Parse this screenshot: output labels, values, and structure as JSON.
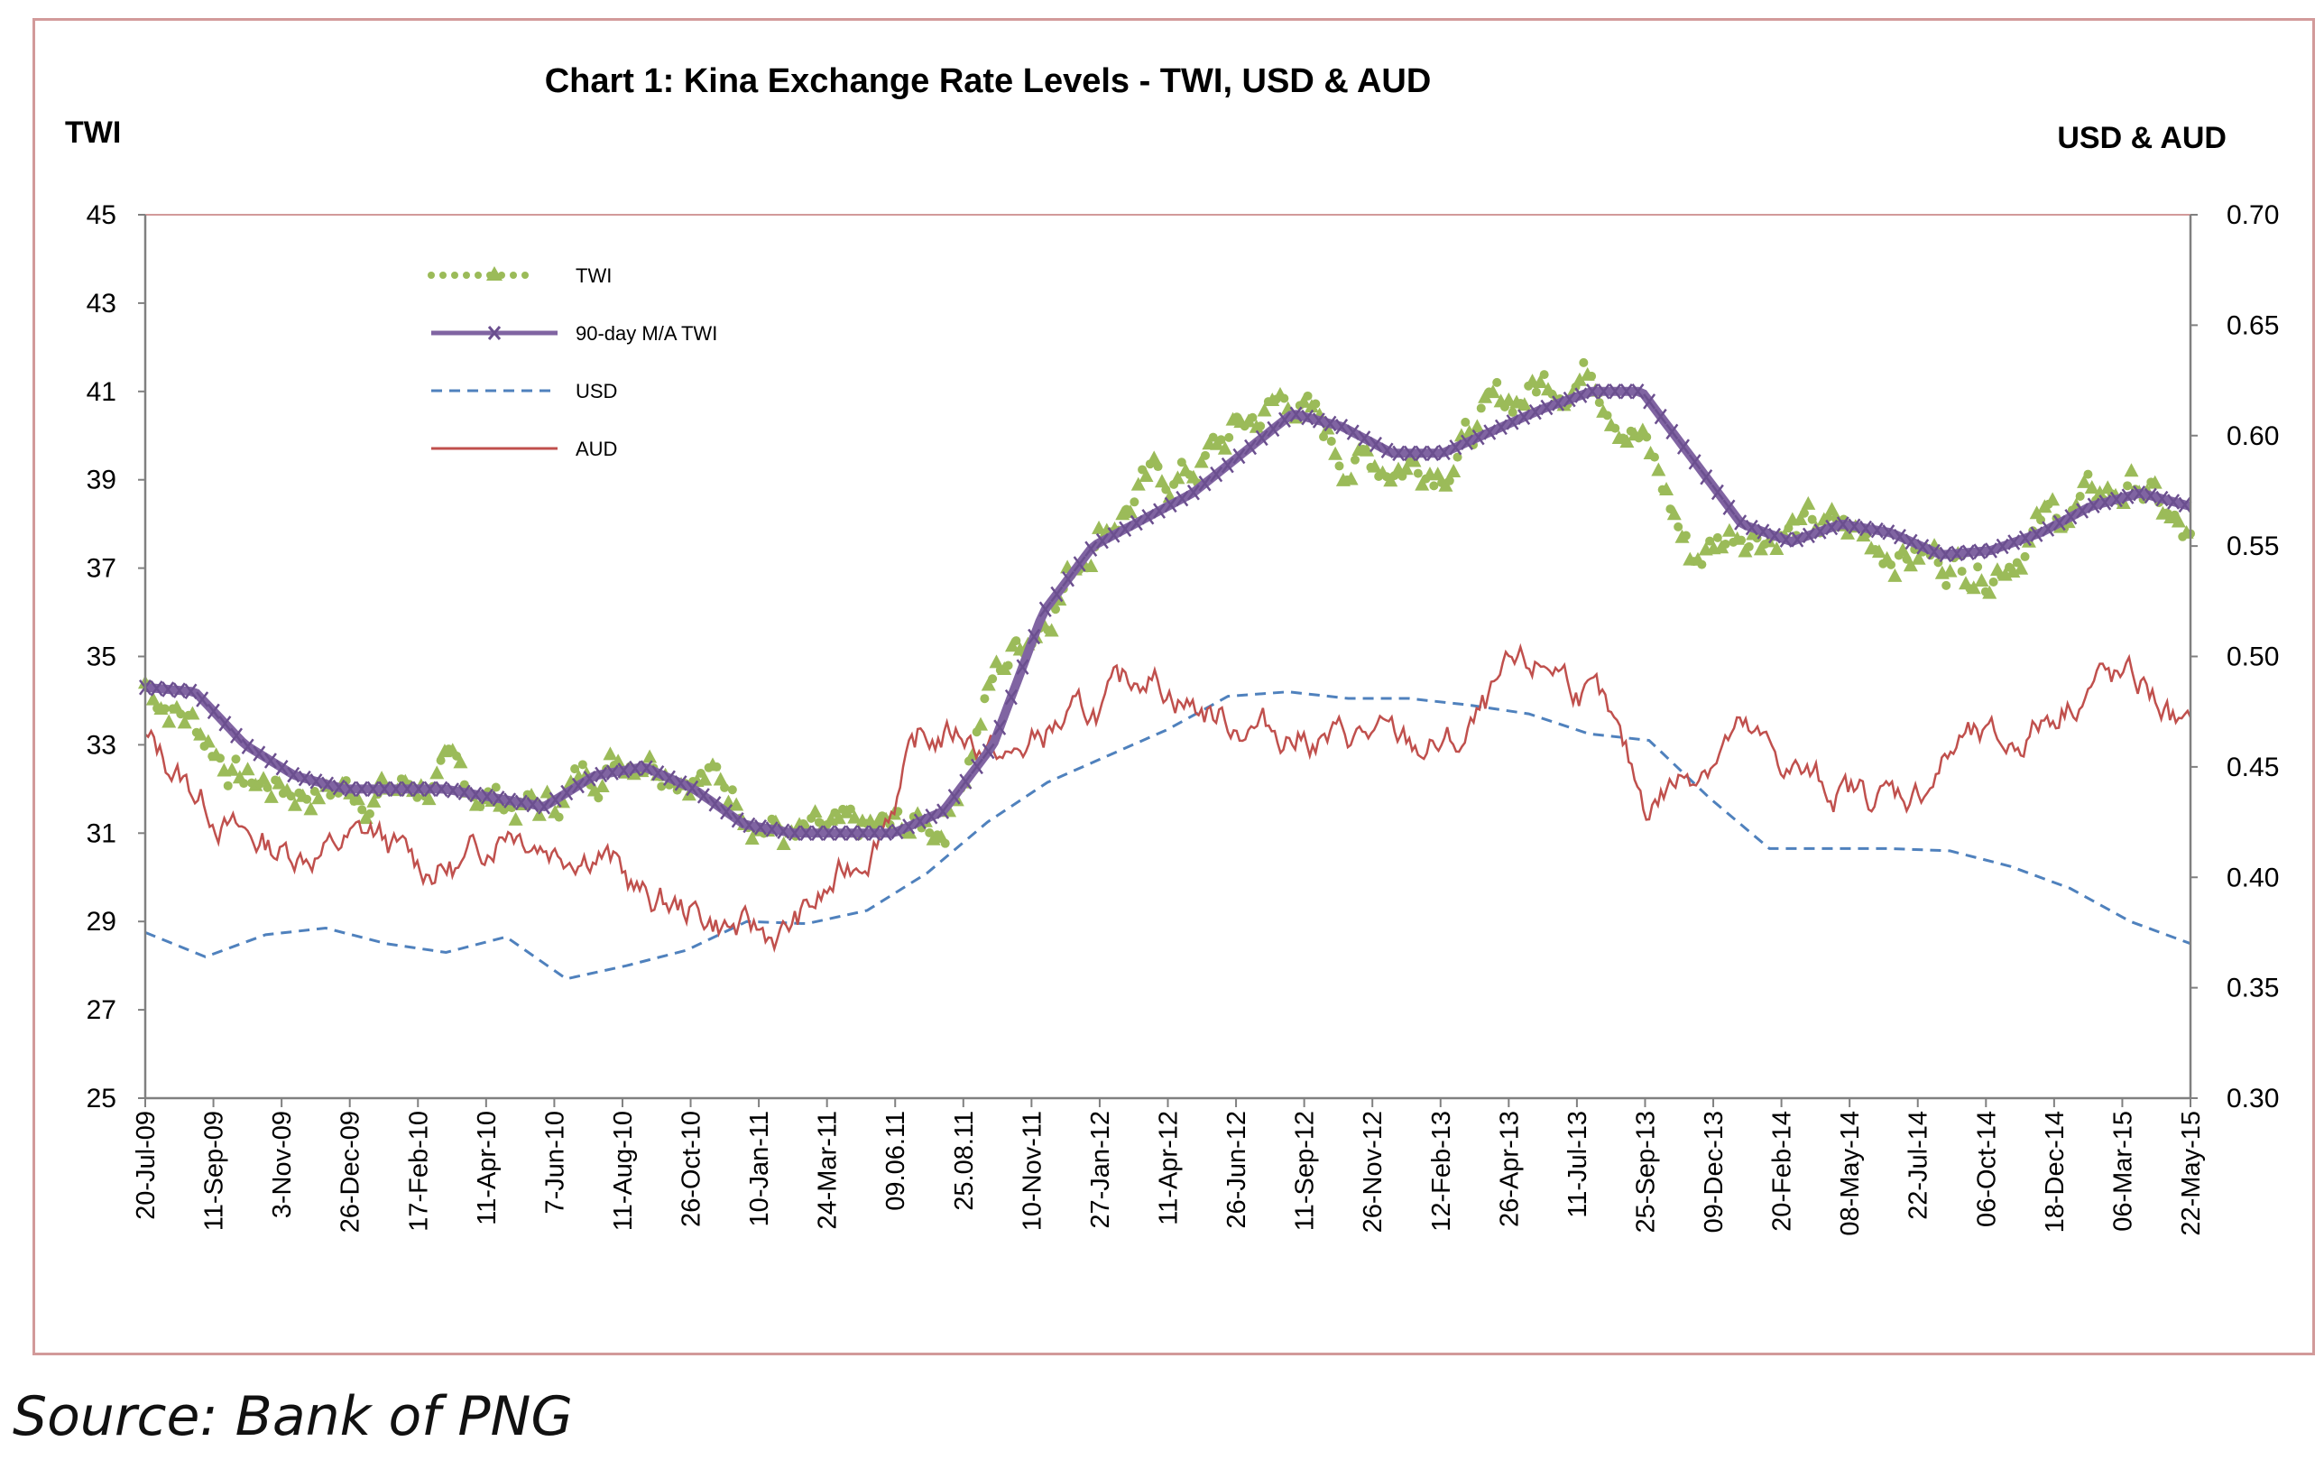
{
  "chart_data": {
    "type": "line",
    "title": "Chart 1: Kina Exchange Rate Levels - TWI, USD & AUD",
    "y_left_label": "TWI",
    "y_right_label": "USD & AUD",
    "y_left_range": [
      25,
      45
    ],
    "y_left_ticks": [
      "45",
      "43",
      "41",
      "39",
      "37",
      "35",
      "33",
      "31",
      "29",
      "27",
      "25"
    ],
    "y_right_range": [
      0.3,
      0.7
    ],
    "y_right_ticks": [
      "0.70",
      "0.65",
      "0.60",
      "0.55",
      "0.50",
      "0.45",
      "0.40",
      "0.35",
      "0.30"
    ],
    "x_tick_labels": [
      "20-Jul-09",
      "11-Sep-09",
      "3-Nov-09",
      "26-Dec-09",
      "17-Feb-10",
      "11-Apr-10",
      "7-Jun-10",
      "11-Aug-10",
      "26-Oct-10",
      "10-Jan-11",
      "24-Mar-11",
      "09.06.11",
      "25.08.11",
      "10-Nov-11",
      "27-Jan-12",
      "11-Apr-12",
      "26-Jun-12",
      "11-Sep-12",
      "26-Nov-12",
      "12-Feb-13",
      "26-Apr-13",
      "11-Jul-13",
      "25-Sep-13",
      "09-Dec-13",
      "20-Feb-14",
      "08-May-14",
      "22-Jul-14",
      "06-Oct-14",
      "18-Dec-14",
      "06-Mar-15",
      "22-May-15"
    ],
    "grid": false,
    "legend_position": "top-left inside plot",
    "colors": {
      "twi": "#9bbb59",
      "ma": "#8064a2",
      "usd": "#4f81bd",
      "aud": "#c0504d",
      "frame": "#d29a9a",
      "axis": "#808080"
    },
    "series": [
      {
        "name": "TWI",
        "axis": "left",
        "values": [
          34.4,
          33.5,
          32.2,
          32.0,
          32.0,
          32.0,
          32.2,
          31.8,
          31.5,
          32.5,
          33.0,
          32.5,
          31.8,
          30.8,
          30.8,
          31.0,
          31.2,
          34.5,
          36.0,
          37.8,
          38.8,
          39.2,
          40.2,
          40.9,
          39.5,
          39.4,
          39.5,
          40.5,
          41.2,
          41.6,
          40.0,
          37.2,
          38.0,
          37.9,
          37.8,
          37.5,
          37.2,
          37.1,
          38.0,
          38.5,
          38.9,
          37.4
        ]
      },
      {
        "name": "90-day M/A TWI",
        "axis": "left",
        "values": [
          34.3,
          34.2,
          33.0,
          32.3,
          32.0,
          32.0,
          32.0,
          31.8,
          31.6,
          32.3,
          32.5,
          32.0,
          31.2,
          31.0,
          31.0,
          31.0,
          31.5,
          33.0,
          36.0,
          37.5,
          38.1,
          38.7,
          39.6,
          40.5,
          40.2,
          39.6,
          39.6,
          40.1,
          40.6,
          41.0,
          41.0,
          39.5,
          38.0,
          37.6,
          38.0,
          37.8,
          37.3,
          37.4,
          37.8,
          38.4,
          38.7,
          38.4
        ]
      },
      {
        "name": "USD",
        "axis": "right",
        "values": [
          0.375,
          0.364,
          0.374,
          0.377,
          0.37,
          0.366,
          0.373,
          0.354,
          0.36,
          0.367,
          0.38,
          0.379,
          0.385,
          0.402,
          0.425,
          0.443,
          0.455,
          0.467,
          0.482,
          0.484,
          0.481,
          0.481,
          0.478,
          0.474,
          0.465,
          0.462,
          0.436,
          0.413,
          0.413,
          0.413,
          0.412,
          0.405,
          0.395,
          0.38,
          0.37
        ]
      },
      {
        "name": "AUD",
        "axis": "right",
        "values": [
          0.462,
          0.441,
          0.42,
          0.412,
          0.412,
          0.42,
          0.405,
          0.404,
          0.426,
          0.414,
          0.413,
          0.39,
          0.385,
          0.376,
          0.374,
          0.392,
          0.416,
          0.46,
          0.466,
          0.452,
          0.468,
          0.475,
          0.495,
          0.478,
          0.47,
          0.466,
          0.462,
          0.464,
          0.458,
          0.46,
          0.49,
          0.497,
          0.478,
          0.433,
          0.448,
          0.466,
          0.452,
          0.44,
          0.437,
          0.438,
          0.462,
          0.458,
          0.475,
          0.49,
          0.486,
          0.463
        ]
      }
    ]
  },
  "source": "Source: Bank of PNG"
}
